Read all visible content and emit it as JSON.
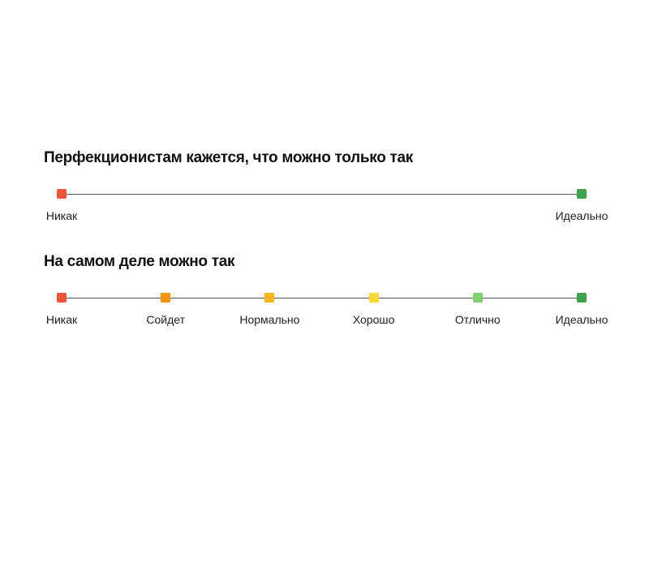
{
  "scales": [
    {
      "title": "Перфекционистам кажется, что можно только так",
      "points": [
        {
          "label": "Никак",
          "color": "#f0553b",
          "position": 0
        },
        {
          "label": "Идеально",
          "color": "#3fa34d",
          "position": 1
        }
      ]
    },
    {
      "title": "На самом деле можно так",
      "points": [
        {
          "label": "Никак",
          "color": "#f0553b",
          "position": 0
        },
        {
          "label": "Сойдет",
          "color": "#f5940f",
          "position": 0.2
        },
        {
          "label": "Нормально",
          "color": "#fbb719",
          "position": 0.4
        },
        {
          "label": "Хорошо",
          "color": "#fdd835",
          "position": 0.6
        },
        {
          "label": "Отлично",
          "color": "#7fd16f",
          "position": 0.8
        },
        {
          "label": "Идеально",
          "color": "#3fa34d",
          "position": 1
        }
      ]
    }
  ]
}
